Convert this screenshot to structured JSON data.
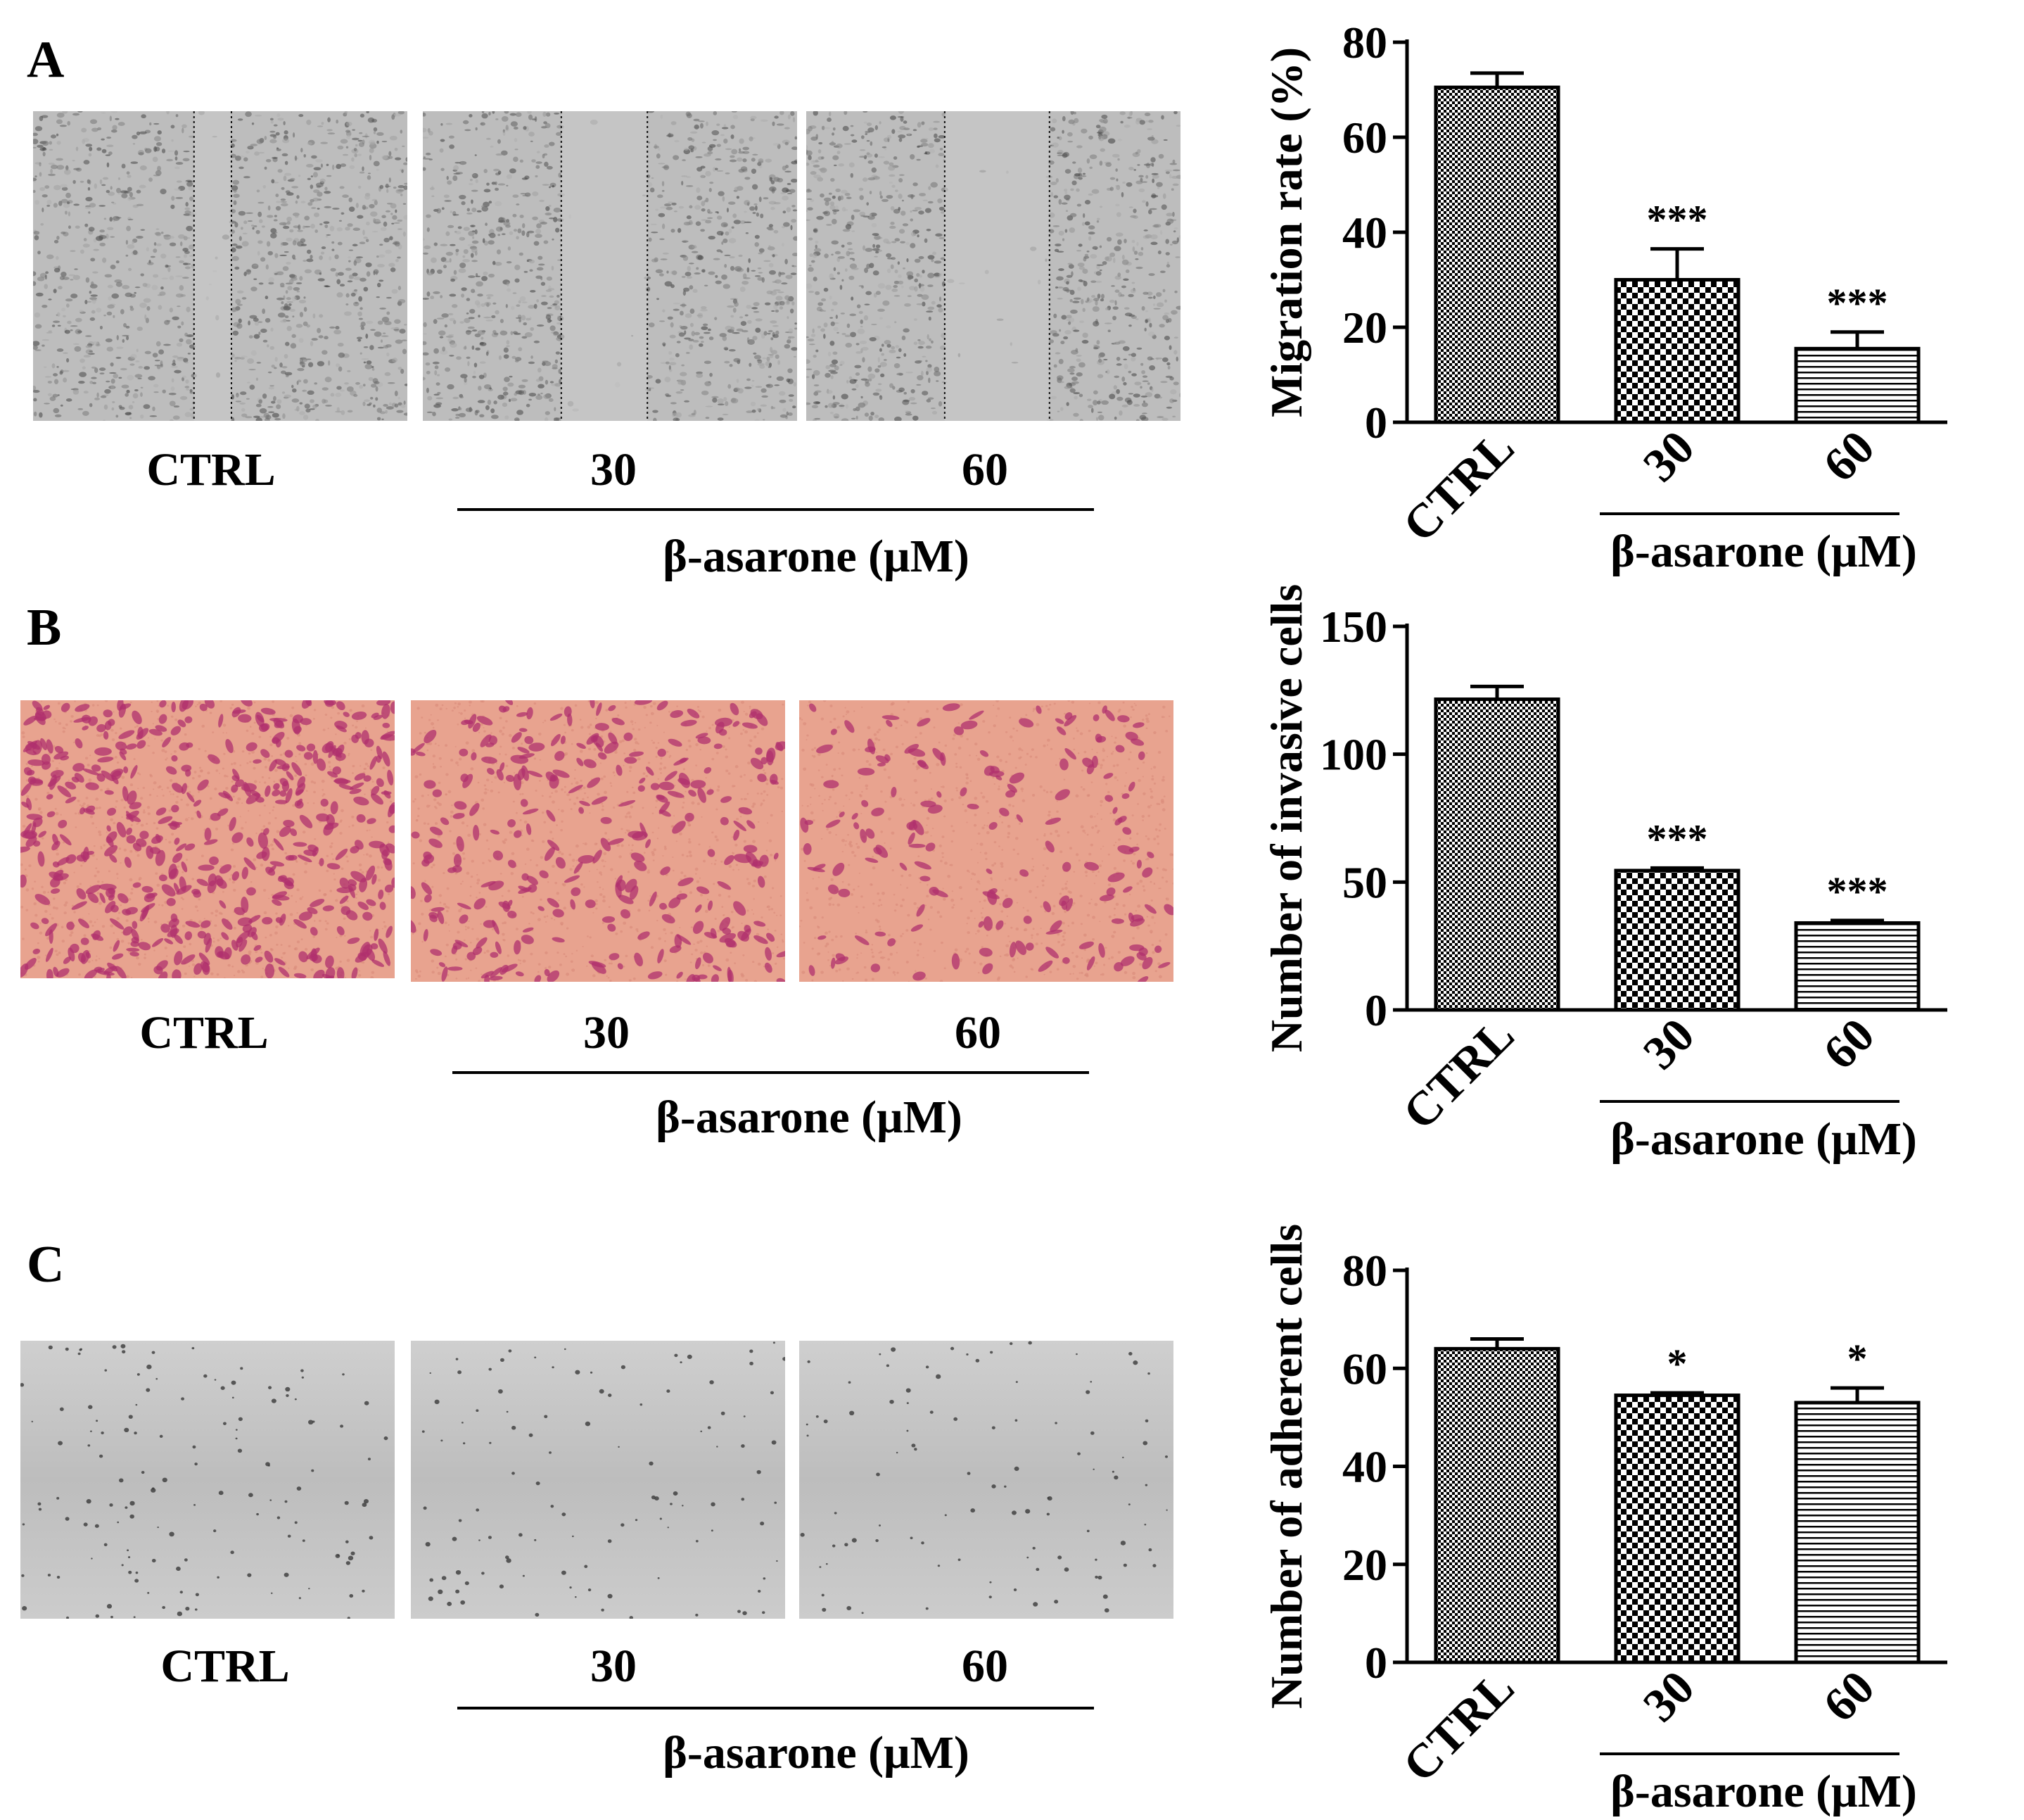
{
  "panels": [
    {
      "letter": "A",
      "conditions": [
        "CTRL",
        "30",
        "60"
      ],
      "treatment_label": "β-asarone (μM)",
      "micrographs": [
        {
          "condition": "CTRL",
          "stain": "phase-contrast wound healing",
          "tint": "#bdbdbd"
        },
        {
          "condition": "30",
          "stain": "phase-contrast wound healing",
          "tint": "#bdbdbd"
        },
        {
          "condition": "60",
          "stain": "phase-contrast wound healing",
          "tint": "#bdbdbd"
        }
      ]
    },
    {
      "letter": "B",
      "conditions": [
        "CTRL",
        "30",
        "60"
      ],
      "treatment_label": "β-asarone (μM)",
      "micrographs": [
        {
          "condition": "CTRL",
          "stain": "crystal violet invasion",
          "tint": "#e8a38f"
        },
        {
          "condition": "30",
          "stain": "crystal violet invasion",
          "tint": "#e8a38f"
        },
        {
          "condition": "60",
          "stain": "crystal violet invasion",
          "tint": "#e8a38f"
        }
      ]
    },
    {
      "letter": "C",
      "conditions": [
        "CTRL",
        "30",
        "60"
      ],
      "treatment_label": "β-asarone (μM)",
      "micrographs": [
        {
          "condition": "CTRL",
          "stain": "adhesion",
          "tint": "#c7c7c7"
        },
        {
          "condition": "30",
          "stain": "adhesion",
          "tint": "#c7c7c7"
        },
        {
          "condition": "60",
          "stain": "adhesion",
          "tint": "#c7c7c7"
        }
      ]
    }
  ],
  "chart_data": [
    {
      "type": "bar",
      "categories": [
        "CTRL",
        "30",
        "60"
      ],
      "values": [
        70.5,
        30,
        15.5
      ],
      "errors": [
        3,
        6.5,
        3.5
      ],
      "significance": [
        "",
        "***",
        "***"
      ],
      "patterns": [
        "checker-fine",
        "checker-coarse",
        "horizontal-lines"
      ],
      "ylabel": "Migration rate (%)",
      "xgroup_label": "β-asarone (μM)",
      "ylim": [
        0,
        80
      ],
      "yticks": [
        0,
        20,
        40,
        60,
        80
      ],
      "ytick_labels": [
        "0",
        "20",
        "40",
        "60",
        "80"
      ]
    },
    {
      "type": "bar",
      "categories": [
        "CTRL",
        "30",
        "60"
      ],
      "values": [
        121.5,
        54.5,
        34
      ],
      "errors": [
        5,
        1,
        1
      ],
      "significance": [
        "",
        "***",
        "***"
      ],
      "patterns": [
        "checker-fine",
        "checker-coarse",
        "horizontal-lines"
      ],
      "ylabel": "Number of invasive cells",
      "xgroup_label": "β-asarone (μM)",
      "ylim": [
        0,
        150
      ],
      "yticks": [
        0,
        50,
        100,
        150
      ],
      "ytick_labels": [
        "0",
        "50",
        "100",
        "150"
      ]
    },
    {
      "type": "bar",
      "categories": [
        "CTRL",
        "30",
        "60"
      ],
      "values": [
        64,
        54.5,
        53
      ],
      "errors": [
        2,
        0.5,
        3
      ],
      "significance": [
        "",
        "*",
        "*"
      ],
      "patterns": [
        "checker-fine",
        "checker-coarse",
        "horizontal-lines"
      ],
      "ylabel": "Number of adherent cells",
      "xgroup_label": "β-asarone (μM)",
      "ylim": [
        0,
        80
      ],
      "yticks": [
        0,
        20,
        40,
        60,
        80
      ],
      "ytick_labels": [
        "0",
        "20",
        "40",
        "60",
        "80"
      ]
    }
  ]
}
